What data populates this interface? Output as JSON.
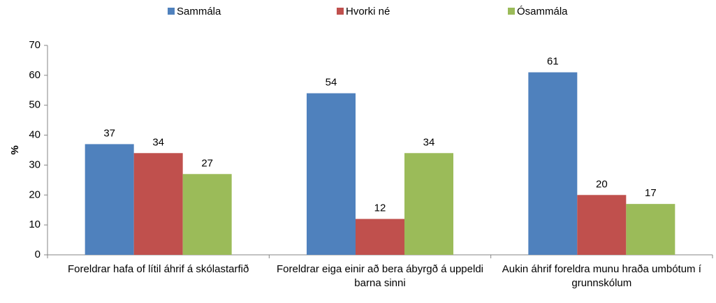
{
  "chart_data": {
    "type": "bar",
    "y_label": "%",
    "categories": [
      "Foreldrar hafa of lítil áhrif á skólastarfið",
      "Foreldrar eiga einir að bera ábyrgð á uppeldi barna sinni",
      "Aukin áhrif foreldra munu hraða umbótum í grunnskólum"
    ],
    "series": [
      {
        "name": "Sammála",
        "color": "#4f81bd",
        "values": [
          37,
          54,
          61
        ]
      },
      {
        "name": "Hvorki né",
        "color": "#c0504d",
        "values": [
          34,
          12,
          20
        ]
      },
      {
        "name": "Ósammála",
        "color": "#9bbb59",
        "values": [
          27,
          34,
          17
        ]
      }
    ],
    "ylim": [
      0,
      70
    ],
    "yticks": [
      0,
      10,
      20,
      30,
      40,
      50,
      60,
      70
    ],
    "grid": false,
    "legend": "top"
  }
}
